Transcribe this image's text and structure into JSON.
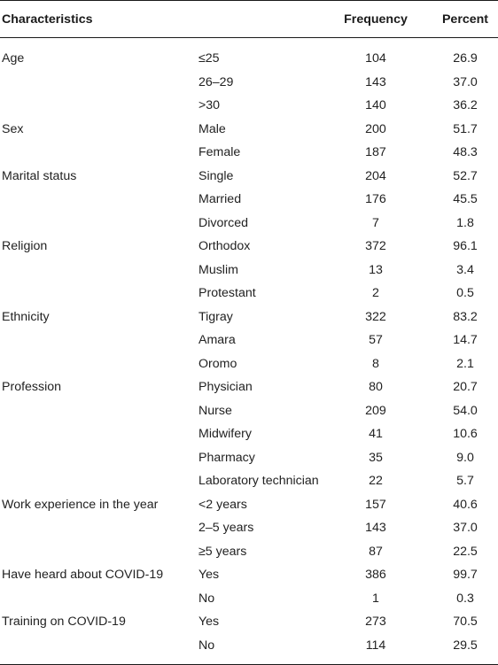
{
  "table": {
    "headers": {
      "characteristics": "Characteristics",
      "subcategory": "",
      "frequency": "Frequency",
      "percent": "Percent"
    },
    "rows": [
      {
        "characteristic": "Age",
        "category": "≤25",
        "frequency": "104",
        "percent": "26.9"
      },
      {
        "characteristic": "",
        "category": "26–29",
        "frequency": "143",
        "percent": "37.0"
      },
      {
        "characteristic": "",
        "category": ">30",
        "frequency": "140",
        "percent": "36.2"
      },
      {
        "characteristic": "Sex",
        "category": "Male",
        "frequency": "200",
        "percent": "51.7"
      },
      {
        "characteristic": "",
        "category": "Female",
        "frequency": "187",
        "percent": "48.3"
      },
      {
        "characteristic": "Marital status",
        "category": "Single",
        "frequency": "204",
        "percent": "52.7"
      },
      {
        "characteristic": "",
        "category": "Married",
        "frequency": "176",
        "percent": "45.5"
      },
      {
        "characteristic": "",
        "category": "Divorced",
        "frequency": "7",
        "percent": "1.8"
      },
      {
        "characteristic": "Religion",
        "category": "Orthodox",
        "frequency": "372",
        "percent": "96.1"
      },
      {
        "characteristic": "",
        "category": "Muslim",
        "frequency": "13",
        "percent": "3.4"
      },
      {
        "characteristic": "",
        "category": "Protestant",
        "frequency": "2",
        "percent": "0.5"
      },
      {
        "characteristic": "Ethnicity",
        "category": "Tigray",
        "frequency": "322",
        "percent": "83.2"
      },
      {
        "characteristic": "",
        "category": "Amara",
        "frequency": "57",
        "percent": "14.7"
      },
      {
        "characteristic": "",
        "category": "Oromo",
        "frequency": "8",
        "percent": "2.1"
      },
      {
        "characteristic": "Profession",
        "category": "Physician",
        "frequency": "80",
        "percent": "20.7"
      },
      {
        "characteristic": "",
        "category": "Nurse",
        "frequency": "209",
        "percent": "54.0"
      },
      {
        "characteristic": "",
        "category": "Midwifery",
        "frequency": "41",
        "percent": "10.6"
      },
      {
        "characteristic": "",
        "category": "Pharmacy",
        "frequency": "35",
        "percent": "9.0"
      },
      {
        "characteristic": "",
        "category": "Laboratory technician",
        "frequency": "22",
        "percent": "5.7"
      },
      {
        "characteristic": "Work experience in the year",
        "category": "<2 years",
        "frequency": "157",
        "percent": "40.6"
      },
      {
        "characteristic": "",
        "category": "2–5 years",
        "frequency": "143",
        "percent": "37.0"
      },
      {
        "characteristic": "",
        "category": "≥5 years",
        "frequency": "87",
        "percent": "22.5"
      },
      {
        "characteristic": "Have heard about COVID-19",
        "category": "Yes",
        "frequency": "386",
        "percent": "99.7"
      },
      {
        "characteristic": "",
        "category": "No",
        "frequency": "1",
        "percent": "0.3"
      },
      {
        "characteristic": "Training on COVID-19",
        "category": "Yes",
        "frequency": "273",
        "percent": "70.5"
      },
      {
        "characteristic": "",
        "category": "No",
        "frequency": "114",
        "percent": "29.5"
      }
    ]
  }
}
